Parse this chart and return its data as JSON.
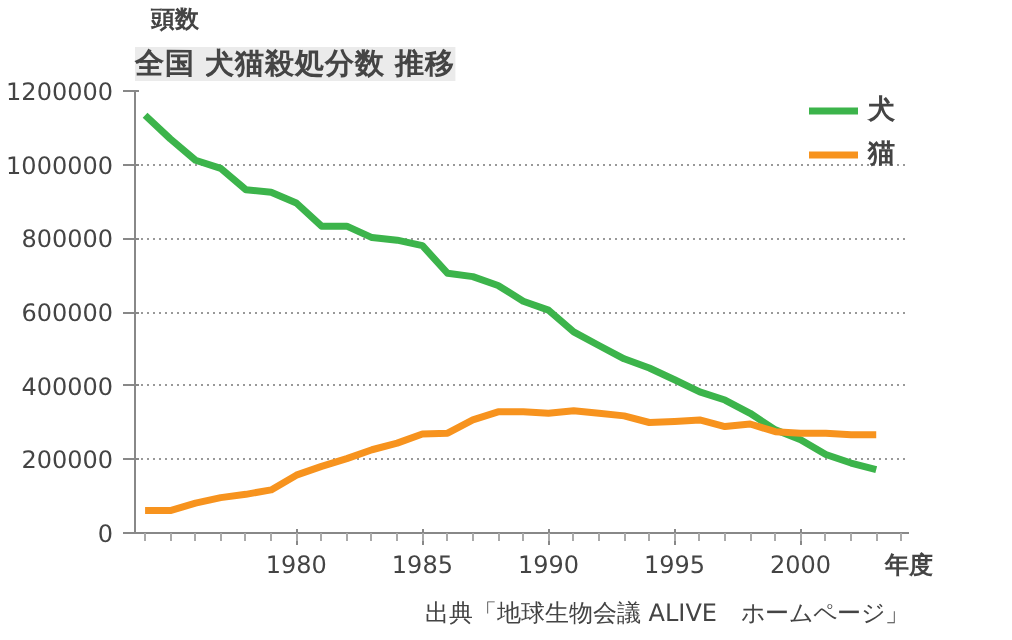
{
  "chart_data": {
    "type": "line",
    "title": "全国 犬猫殺処分数 推移",
    "ylabel": "頭数",
    "xlabel": "年度",
    "x": [
      1974,
      1975,
      1976,
      1977,
      1978,
      1979,
      1980,
      1981,
      1982,
      1983,
      1984,
      1985,
      1986,
      1987,
      1988,
      1989,
      1990,
      1991,
      1992,
      1993,
      1994,
      1995,
      1996,
      1997,
      1998,
      1999,
      2000,
      2001,
      2002,
      2003
    ],
    "series": [
      {
        "name": "犬",
        "color": "#3cb44b",
        "values": [
          1134000,
          1070000,
          1012000,
          990000,
          932000,
          925000,
          896000,
          833000,
          833000,
          802000,
          795000,
          780000,
          705000,
          696000,
          672000,
          629000,
          605000,
          546000,
          509000,
          473000,
          448000,
          416000,
          383000,
          361000,
          325000,
          280000,
          253000,
          213000,
          190000,
          172000
        ]
      },
      {
        "name": "猫",
        "color": "#f7931e",
        "values": [
          61000,
          61000,
          81000,
          96000,
          105000,
          117000,
          157000,
          181000,
          202000,
          226000,
          244000,
          269000,
          271000,
          307000,
          329000,
          329000,
          325000,
          332000,
          325000,
          318000,
          300000,
          303000,
          307000,
          289000,
          296000,
          275000,
          271000,
          271000,
          267000,
          267000
        ]
      }
    ],
    "xlim": [
      1973.6,
      2004.3
    ],
    "ylim": [
      0,
      1200000
    ],
    "xticks": [
      1980,
      1985,
      1990,
      1995,
      2000
    ],
    "yticks": [
      0,
      200000,
      400000,
      600000,
      800000,
      1000000,
      1200000
    ],
    "grid": "y",
    "legend": "top right",
    "line_style": "solid",
    "marker": "none",
    "annotations": [
      "出典「地球生物会議 ALIVE　ホームページ」"
    ]
  }
}
